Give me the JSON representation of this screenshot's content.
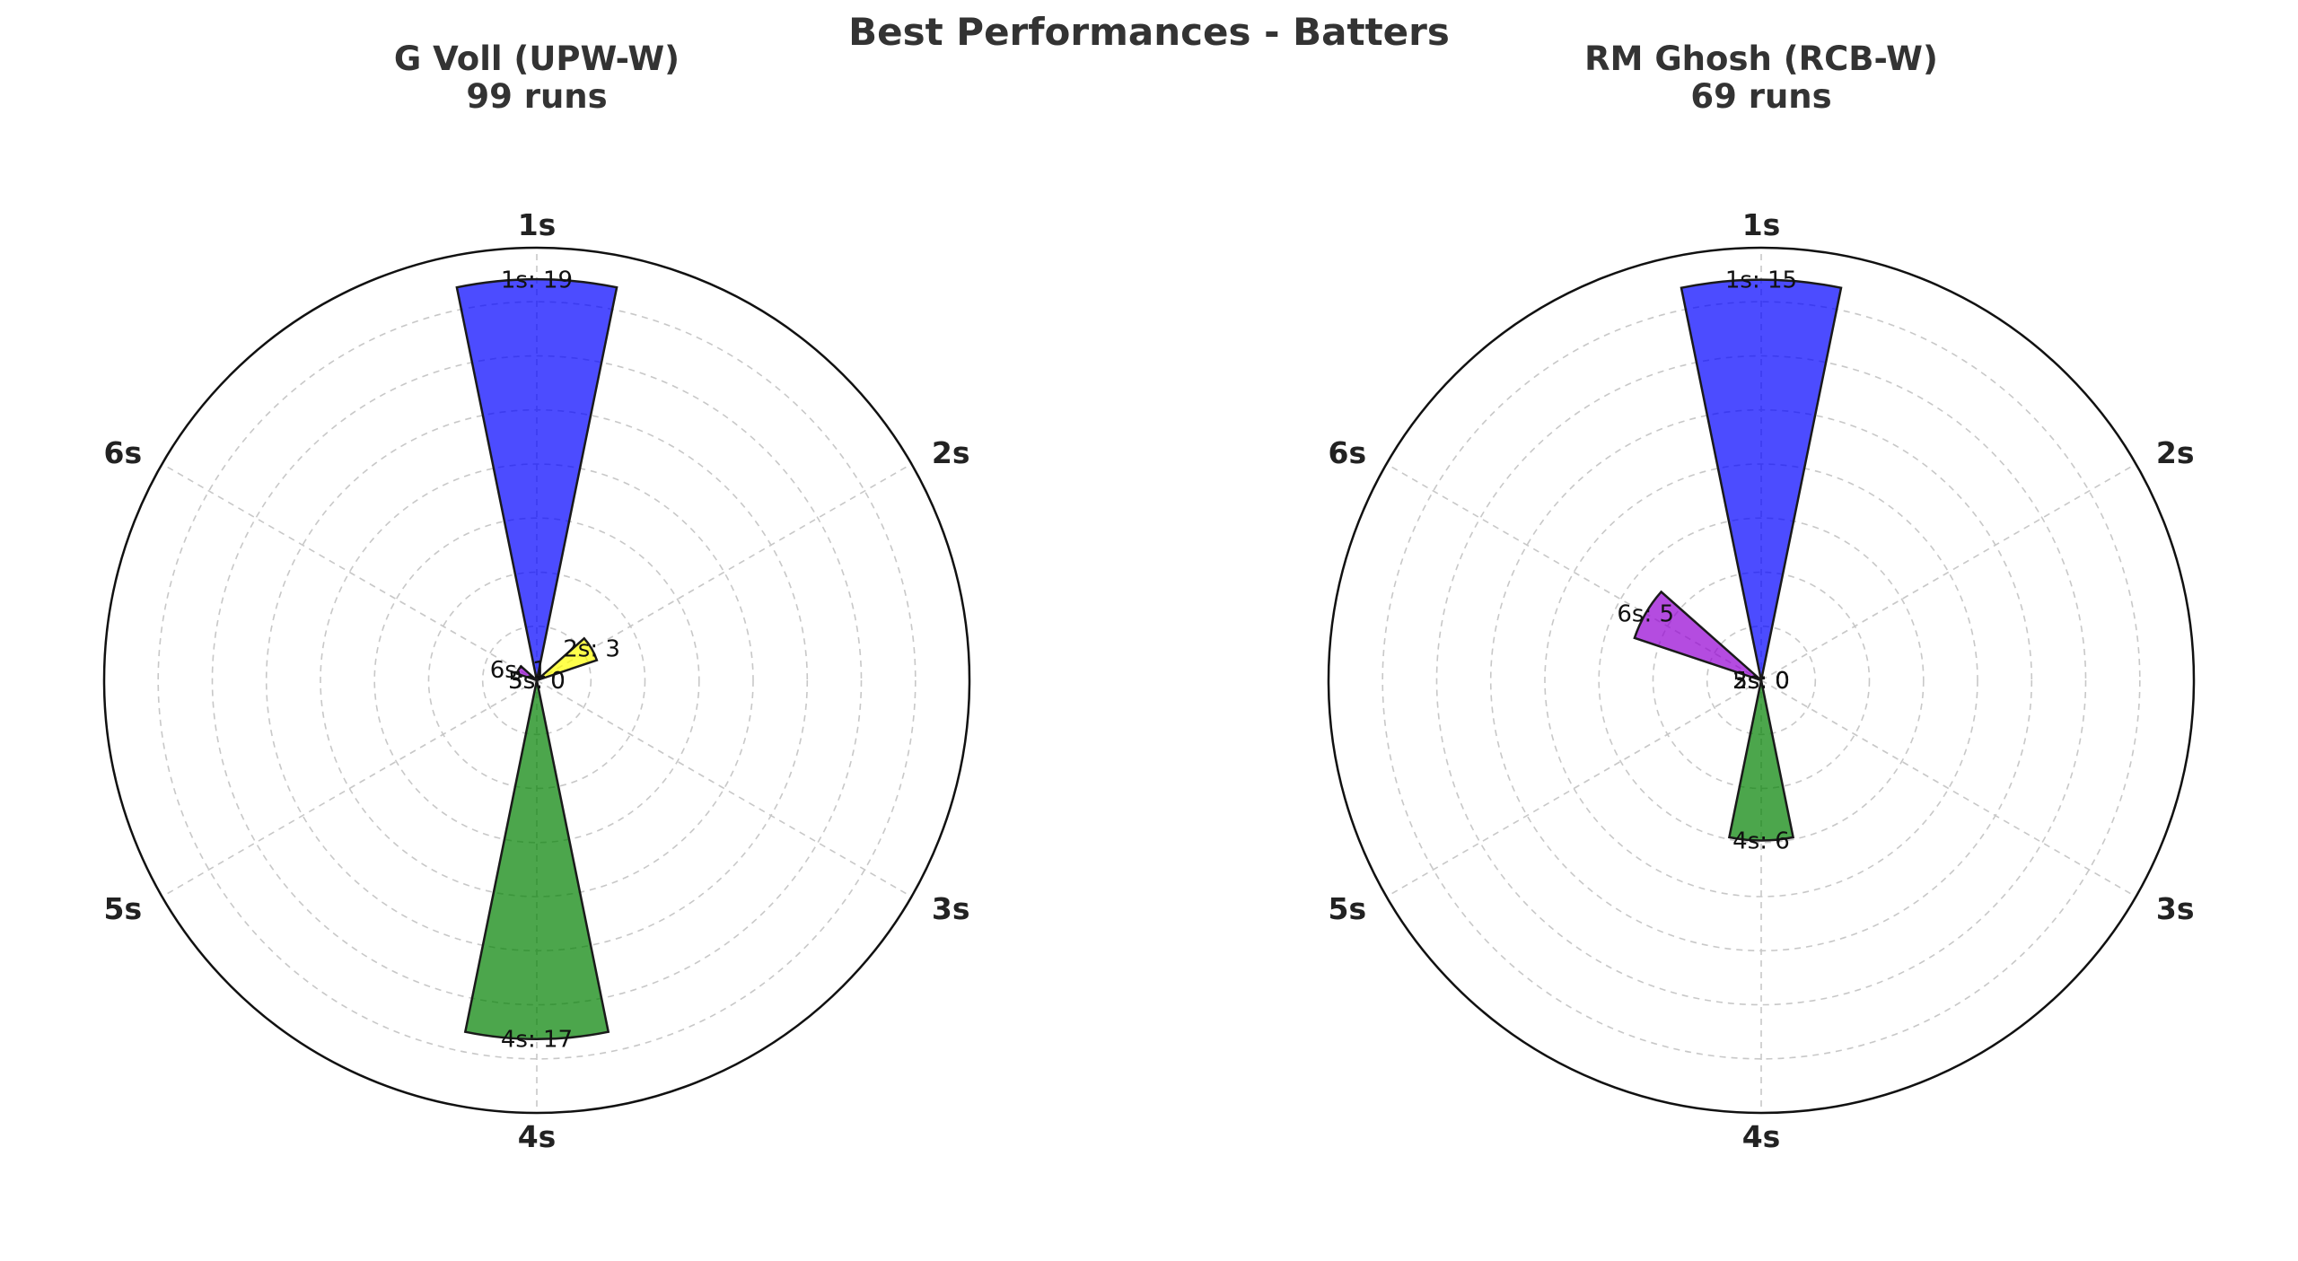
{
  "figure": {
    "title": "Best Performances - Batters"
  },
  "chart_data": [
    {
      "type": "bar",
      "polar": true,
      "title": "G Voll (UPW-W)",
      "subtitle": "99 runs",
      "categories": [
        "1s",
        "2s",
        "3s",
        "4s",
        "5s",
        "6s"
      ],
      "values": [
        19,
        3,
        0,
        17,
        0,
        1
      ],
      "data_labels": [
        "1s: 19",
        "2s: 3",
        "3s: 0",
        "4s: 17",
        "5s: 0",
        "6s: 1"
      ],
      "colors": [
        "#0000ff",
        "#ffff00",
        "#ff7f00",
        "#008000",
        "#ff0000",
        "#9400d3"
      ],
      "rlim": [
        0,
        20.5
      ],
      "grid": true
    },
    {
      "type": "bar",
      "polar": true,
      "title": "RM Ghosh (RCB-W)",
      "subtitle": "69 runs",
      "categories": [
        "1s",
        "2s",
        "3s",
        "4s",
        "5s",
        "6s"
      ],
      "values": [
        15,
        0,
        0,
        6,
        0,
        5
      ],
      "data_labels": [
        "1s: 15",
        "2s: 0",
        "3s: 0",
        "4s: 6",
        "5s: 0",
        "6s: 5"
      ],
      "colors": [
        "#0000ff",
        "#ffff00",
        "#ff7f00",
        "#008000",
        "#ff0000",
        "#9400d3"
      ],
      "rlim": [
        0,
        16.2
      ],
      "grid": true
    }
  ]
}
